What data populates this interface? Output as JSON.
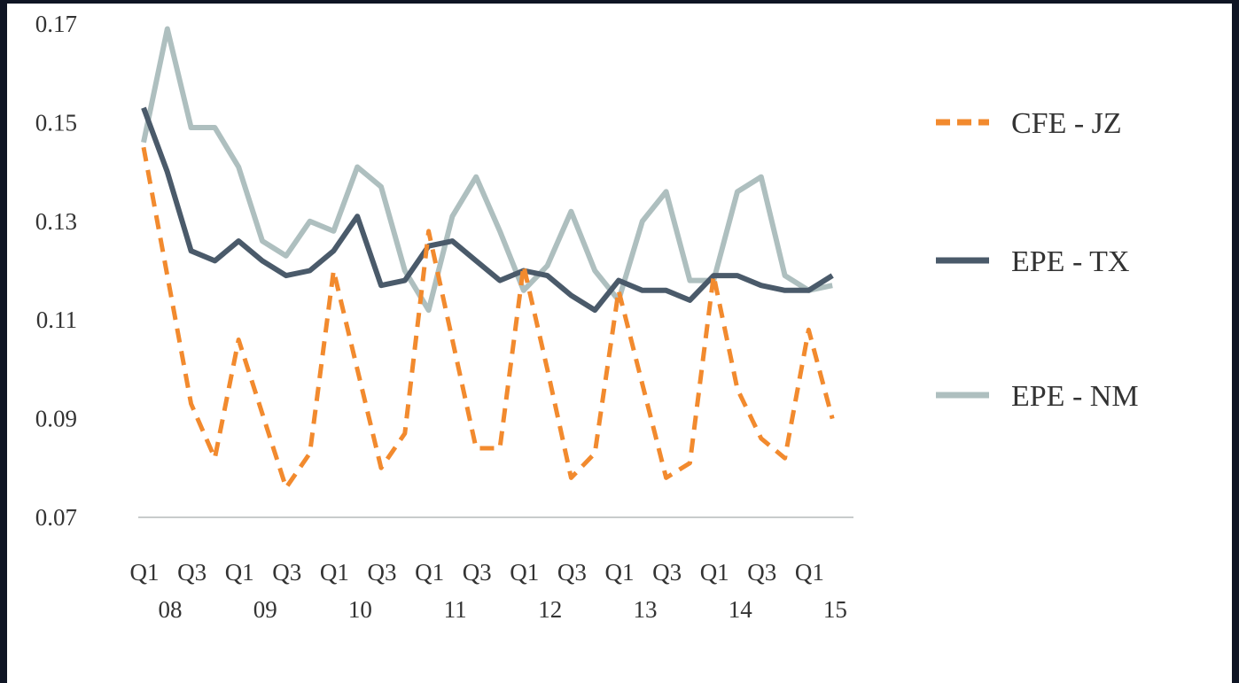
{
  "chart_data": {
    "type": "line",
    "title": "",
    "xlabel": "",
    "ylabel": "",
    "ylim": [
      0.07,
      0.17
    ],
    "y_ticks": [
      "0.17",
      "0.15",
      "0.13",
      "0.11",
      "0.09",
      "0.07"
    ],
    "x_tick_labels": [
      {
        "quarter": "Q1",
        "year": "08"
      },
      {
        "quarter": "Q3",
        "year": ""
      },
      {
        "quarter": "Q1",
        "year": "09"
      },
      {
        "quarter": "Q3",
        "year": ""
      },
      {
        "quarter": "Q1",
        "year": "10"
      },
      {
        "quarter": "Q3",
        "year": ""
      },
      {
        "quarter": "Q1",
        "year": "11"
      },
      {
        "quarter": "Q3",
        "year": ""
      },
      {
        "quarter": "Q1",
        "year": "12"
      },
      {
        "quarter": "Q3",
        "year": ""
      },
      {
        "quarter": "Q1",
        "year": "13"
      },
      {
        "quarter": "Q3",
        "year": ""
      },
      {
        "quarter": "Q1",
        "year": "14"
      },
      {
        "quarter": "Q3",
        "year": ""
      },
      {
        "quarter": "Q1",
        "year": "15"
      }
    ],
    "x": [
      "2008 Q1",
      "2008 Q2",
      "2008 Q3",
      "2008 Q4",
      "2009 Q1",
      "2009 Q2",
      "2009 Q3",
      "2009 Q4",
      "2010 Q1",
      "2010 Q2",
      "2010 Q3",
      "2010 Q4",
      "2011 Q1",
      "2011 Q2",
      "2011 Q3",
      "2011 Q4",
      "2012 Q1",
      "2012 Q2",
      "2012 Q3",
      "2012 Q4",
      "2013 Q1",
      "2013 Q2",
      "2013 Q3",
      "2013 Q4",
      "2014 Q1",
      "2014 Q2",
      "2014 Q3",
      "2014 Q4",
      "2015 Q1",
      "2015 Q2"
    ],
    "grid": false,
    "legend_position": "right",
    "series": [
      {
        "name": "CFE - JZ",
        "color": "#f28a2e",
        "style": "dashed",
        "values": [
          0.145,
          0.119,
          0.093,
          0.082,
          0.106,
          0.091,
          0.076,
          0.083,
          0.12,
          0.1,
          0.08,
          0.087,
          0.128,
          0.106,
          0.084,
          0.084,
          0.121,
          0.1,
          0.078,
          0.083,
          0.116,
          0.097,
          0.078,
          0.081,
          0.119,
          0.096,
          0.086,
          0.082,
          0.108,
          0.09
        ]
      },
      {
        "name": "EPE - TX",
        "color": "#4a5a6a",
        "style": "solid",
        "values": [
          0.153,
          0.14,
          0.124,
          0.122,
          0.126,
          0.122,
          0.119,
          0.12,
          0.124,
          0.131,
          0.117,
          0.118,
          0.125,
          0.126,
          0.122,
          0.118,
          0.12,
          0.119,
          0.115,
          0.112,
          0.118,
          0.116,
          0.116,
          0.114,
          0.119,
          0.119,
          0.117,
          0.116,
          0.116,
          0.119
        ]
      },
      {
        "name": "EPE - NM",
        "color": "#aebfbf",
        "style": "solid",
        "values": [
          0.146,
          0.169,
          0.149,
          0.149,
          0.141,
          0.126,
          0.123,
          0.13,
          0.128,
          0.141,
          0.137,
          0.12,
          0.112,
          0.131,
          0.139,
          0.128,
          0.116,
          0.121,
          0.132,
          0.12,
          0.114,
          0.13,
          0.136,
          0.118,
          0.118,
          0.136,
          0.139,
          0.119,
          0.116,
          0.117
        ]
      }
    ]
  }
}
